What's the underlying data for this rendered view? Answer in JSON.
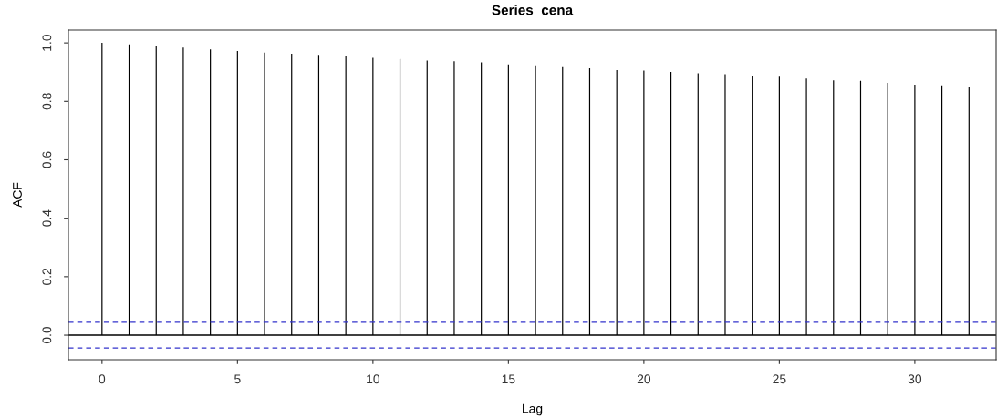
{
  "chart_data": {
    "type": "bar",
    "title": "Series  cena",
    "xlabel": "Lag",
    "ylabel": "ACF",
    "x": [
      0,
      1,
      2,
      3,
      4,
      5,
      6,
      7,
      8,
      9,
      10,
      11,
      12,
      13,
      14,
      15,
      16,
      17,
      18,
      19,
      20,
      21,
      22,
      23,
      24,
      25,
      26,
      27,
      28,
      29,
      30,
      31,
      32
    ],
    "values": [
      1.0,
      0.995,
      0.99,
      0.984,
      0.978,
      0.972,
      0.967,
      0.963,
      0.959,
      0.955,
      0.949,
      0.945,
      0.94,
      0.937,
      0.933,
      0.926,
      0.923,
      0.917,
      0.913,
      0.907,
      0.905,
      0.901,
      0.896,
      0.893,
      0.887,
      0.884,
      0.878,
      0.872,
      0.87,
      0.863,
      0.857,
      0.855,
      0.849
    ],
    "color": "#000000",
    "xlim": [
      -1.24,
      33.0
    ],
    "ylim": [
      -0.084,
      1.044
    ],
    "xticks": [
      0,
      5,
      10,
      15,
      20,
      25,
      30
    ],
    "yticks": [
      {
        "value": 0,
        "label": "0.0"
      },
      0.2,
      0.4,
      0.6,
      0.8,
      {
        "value": 1,
        "label": "1.0"
      }
    ],
    "ref_lines": [
      {
        "axis": "y",
        "value": 0,
        "color": "#000000",
        "line_style": "solid"
      },
      {
        "axis": "y",
        "value": 0.044,
        "color": "#3333cc",
        "line_style": "dashed"
      },
      {
        "axis": "y",
        "value": -0.044,
        "color": "#3333cc",
        "line_style": "dashed"
      }
    ],
    "grid": false,
    "legend": false
  }
}
